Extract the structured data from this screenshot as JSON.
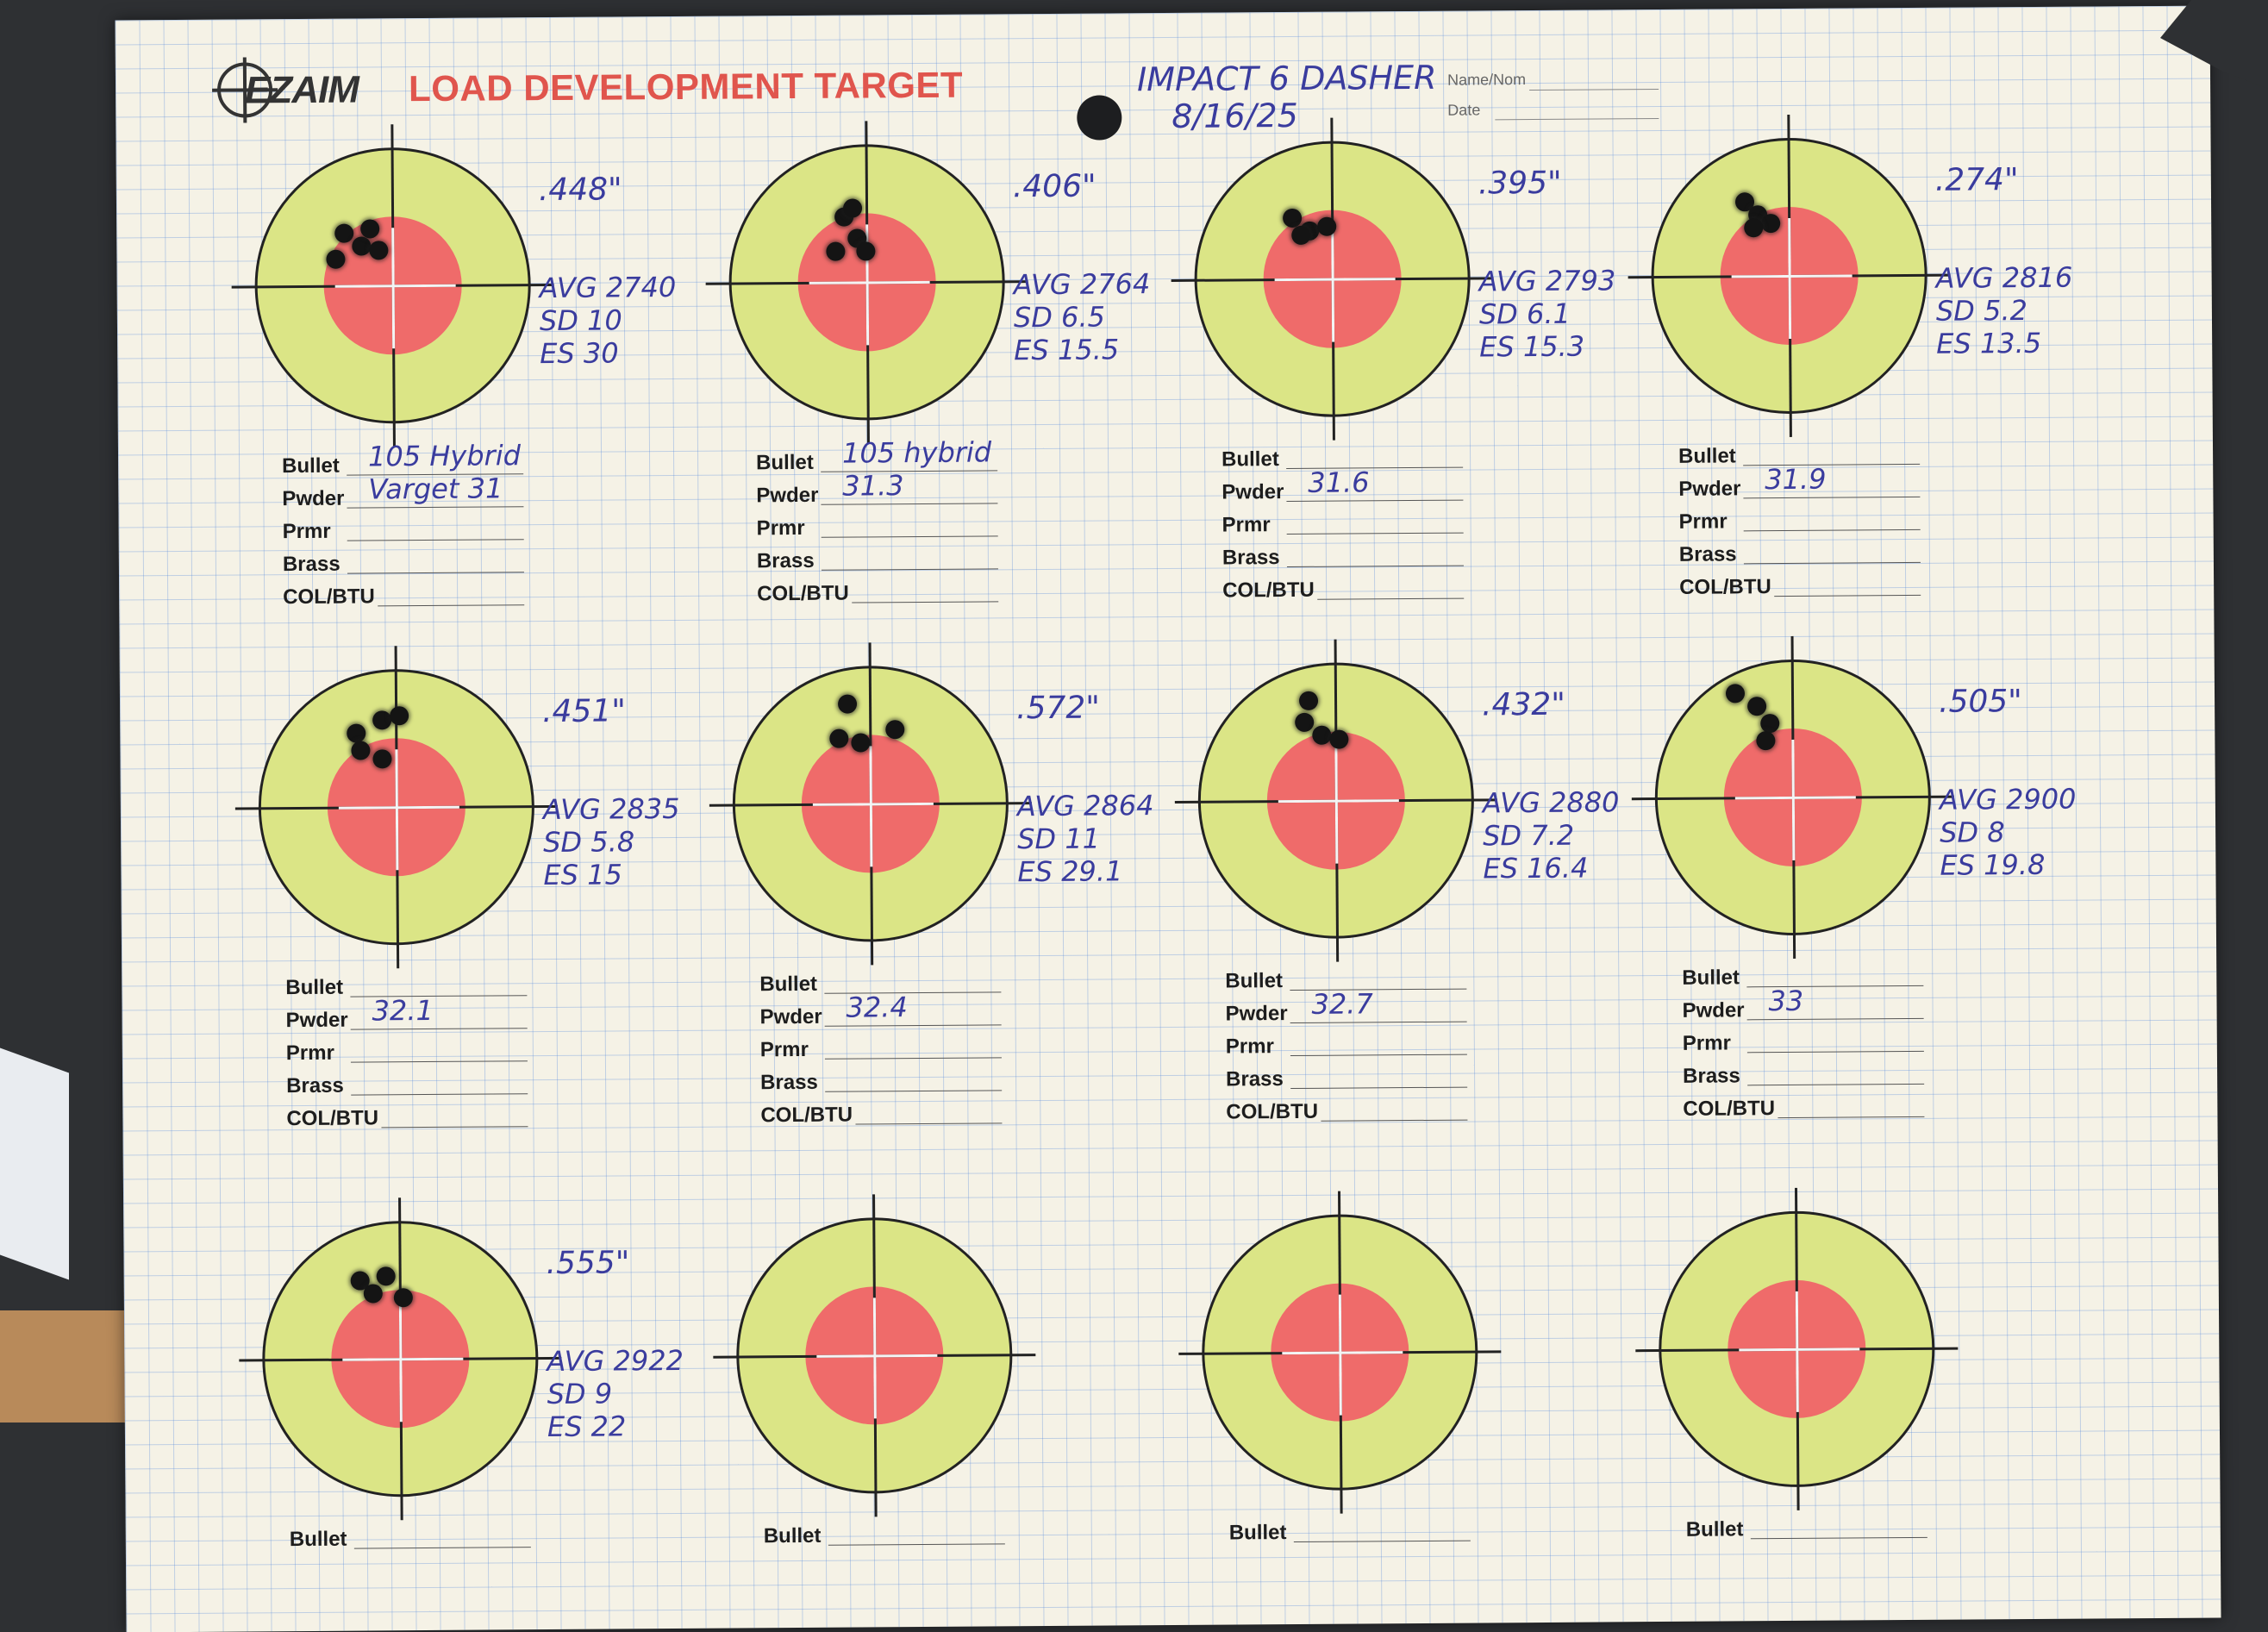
{
  "header": {
    "logo_text": "EZAIM",
    "title": "LOAD DEVELOPMENT TARGET",
    "name_label": "Name/Nom",
    "date_label": "Date",
    "handwritten_name": "IMPACT 6 DASHER",
    "handwritten_date": "8/16/25"
  },
  "load_labels": {
    "bullet": "Bullet",
    "powder": "Pwder",
    "primer": "Prmr",
    "brass": "Brass",
    "col": "COL/BTU"
  },
  "targets": [
    {
      "group": ".448\"",
      "avg": "AVG 2740",
      "sd": "SD 10",
      "es": "ES 30",
      "bullet": "105 Hybrid",
      "powder": "Varget 31"
    },
    {
      "group": ".406\"",
      "avg": "AVG 2764",
      "sd": "SD 6.5",
      "es": "ES 15.5",
      "bullet": "105 hybrid",
      "powder": "31.3"
    },
    {
      "group": ".395\"",
      "avg": "AVG 2793",
      "sd": "SD 6.1",
      "es": "ES 15.3",
      "bullet": "",
      "powder": "31.6"
    },
    {
      "group": ".274\"",
      "avg": "AVG 2816",
      "sd": "SD 5.2",
      "es": "ES 13.5",
      "bullet": "",
      "powder": "31.9"
    },
    {
      "group": ".451\"",
      "avg": "AVG 2835",
      "sd": "SD 5.8",
      "es": "ES 15",
      "bullet": "",
      "powder": "32.1"
    },
    {
      "group": ".572\"",
      "avg": "AVG 2864",
      "sd": "SD 11",
      "es": "ES 29.1",
      "bullet": "",
      "powder": "32.4"
    },
    {
      "group": ".432\"",
      "avg": "AVG 2880",
      "sd": "SD 7.2",
      "es": "ES 16.4",
      "bullet": "",
      "powder": "32.7"
    },
    {
      "group": ".505\"",
      "avg": "AVG 2900",
      "sd": "SD 8",
      "es": "ES 19.8",
      "bullet": "",
      "powder": "33"
    },
    {
      "group": ".555\"",
      "avg": "AVG 2922",
      "sd": "SD 9",
      "es": "ES 22",
      "bullet": "",
      "powder": ""
    },
    {
      "group": "",
      "avg": "",
      "sd": "",
      "es": "",
      "bullet": "",
      "powder": ""
    },
    {
      "group": "",
      "avg": "",
      "sd": "",
      "es": "",
      "bullet": "",
      "powder": ""
    },
    {
      "group": "",
      "avg": "",
      "sd": "",
      "es": "",
      "bullet": "",
      "powder": ""
    }
  ],
  "colors": {
    "paper": "#f5f2e6",
    "grid": "#5a8cdc",
    "target_ring": "#dbe586",
    "bullseye": "#ef6b6a",
    "title_red": "#e0554d",
    "ink": "#3a3c9e"
  }
}
